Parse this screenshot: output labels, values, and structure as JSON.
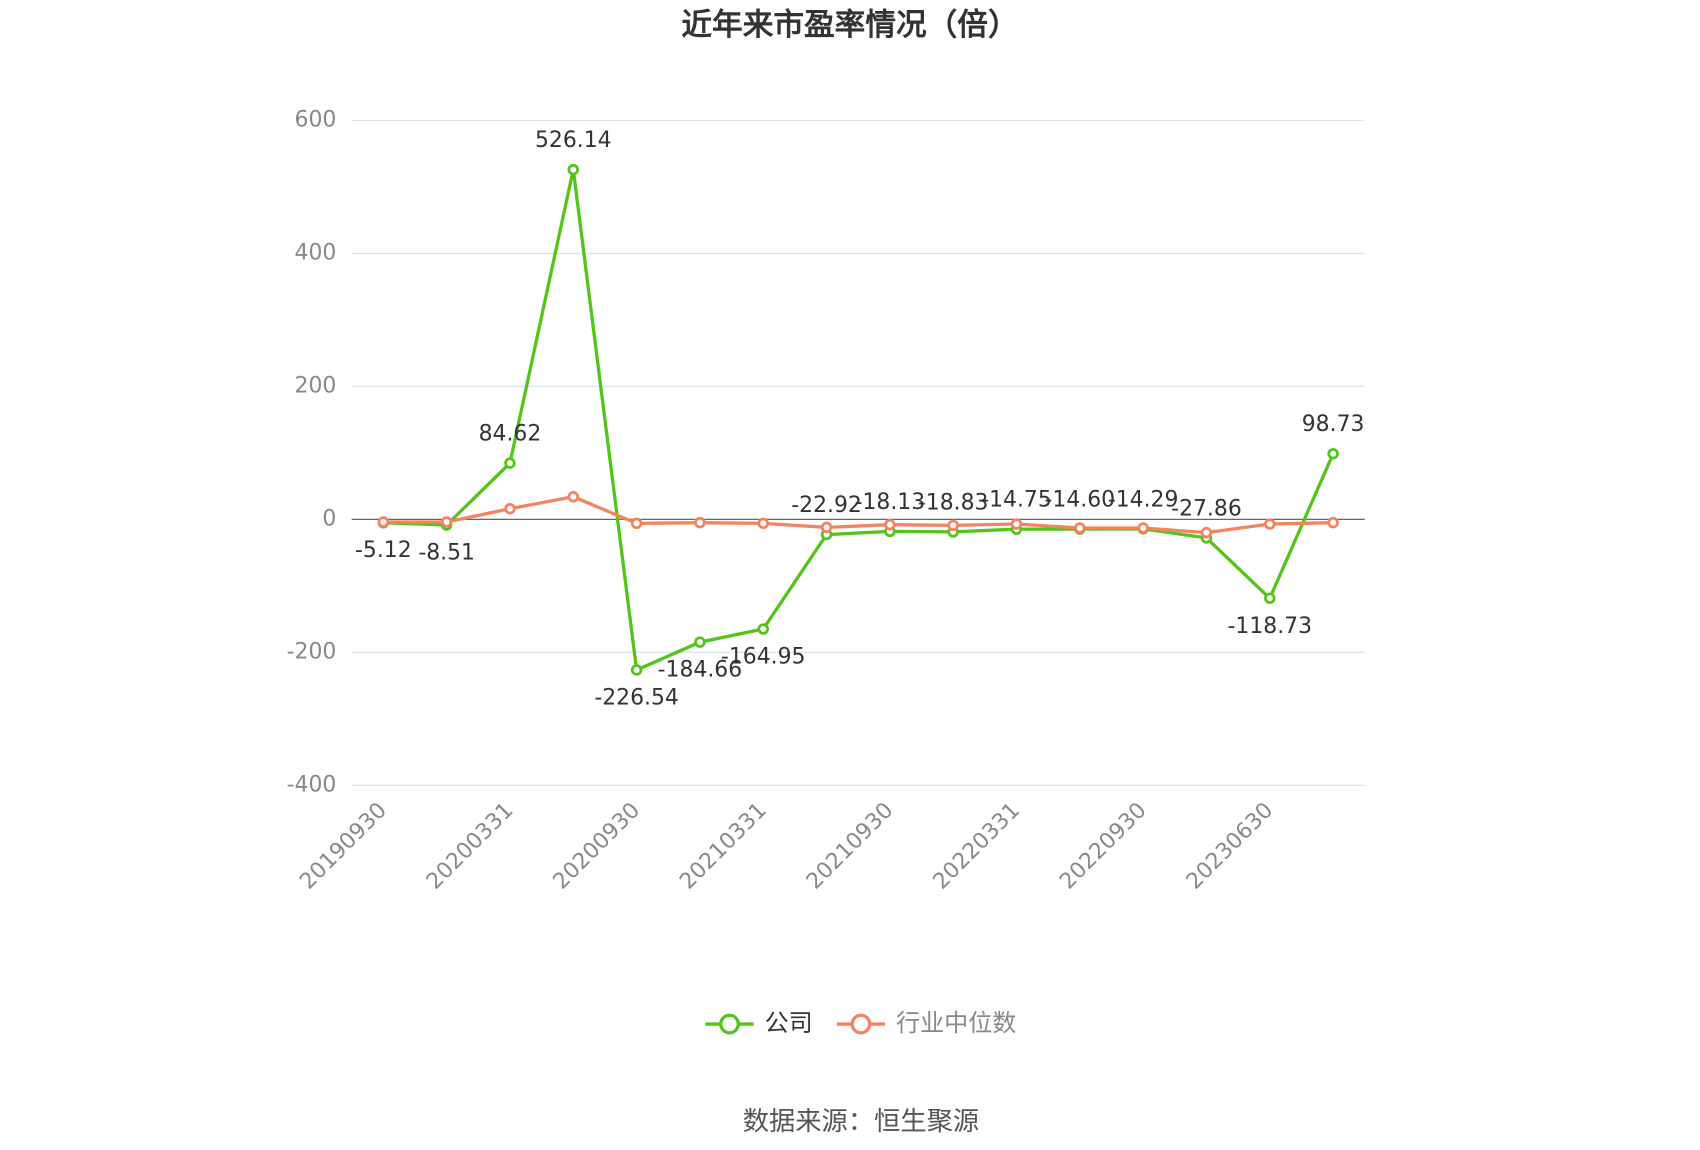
{
  "chart_data": {
    "type": "line",
    "title": "近年来市盈率情况（倍）",
    "categories": [
      "20190930",
      null,
      "20200331",
      null,
      "20200930",
      null,
      "20210331",
      null,
      "20210930",
      null,
      "20220331",
      null,
      "20220930",
      null,
      "20230630",
      null
    ],
    "series": [
      {
        "name": "公司",
        "color": "#52c41a",
        "values": [
          -5.12,
          -8.51,
          84.62,
          526.14,
          -226.54,
          -184.66,
          -164.95,
          -22.92,
          -18.13,
          -18.83,
          -14.75,
          -14.6,
          -14.29,
          -27.86,
          -118.73,
          98.73
        ],
        "value_labels": [
          "-5.12",
          "-8.51",
          "84.62",
          "526.14",
          "-226.54",
          "-184.66",
          "-164.95",
          "-22.92",
          "-18.13",
          "-18.83",
          "-14.75",
          "-14.60",
          "-14.29",
          "-27.86",
          "-118.73",
          "98.73"
        ]
      },
      {
        "name": "行业中位数",
        "color": "#f4845f",
        "values": [
          -4,
          -4,
          16,
          34,
          -6,
          -5,
          -6,
          -12,
          -8,
          -9,
          -7,
          -13,
          -13,
          -20,
          -7,
          -5
        ]
      }
    ],
    "ylim": [
      -400,
      600
    ],
    "yticks": [
      -400,
      -200,
      0,
      200,
      400,
      600
    ],
    "grid": true,
    "source": "数据来源：恒生聚源"
  }
}
